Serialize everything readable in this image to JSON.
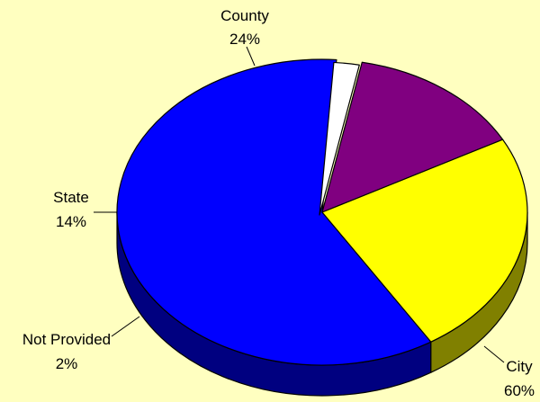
{
  "chart_data": {
    "type": "pie",
    "style": "3d",
    "title": "",
    "slices": [
      {
        "name": "City",
        "value": 60,
        "label": "60%",
        "color": "#0000FF",
        "side_color": "#000080"
      },
      {
        "name": "Not Provided",
        "value": 2,
        "label": "2%",
        "color": "#FFFFFF",
        "side_color": "#808080"
      },
      {
        "name": "State",
        "value": 14,
        "label": "14%",
        "color": "#800080",
        "side_color": "#400040"
      },
      {
        "name": "County",
        "value": 24,
        "label": "24%",
        "color": "#FFFF00",
        "side_color": "#808000"
      }
    ],
    "legend": "none",
    "background": "#FFFFC0"
  }
}
